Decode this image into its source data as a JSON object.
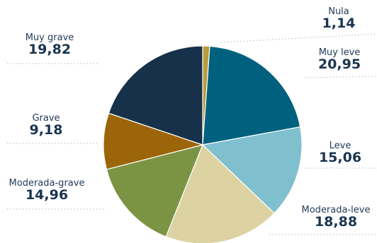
{
  "chart_data": {
    "type": "pie",
    "slices": [
      {
        "label": "Nula",
        "value": 1.14,
        "value_text": "1,14",
        "color": "#B99A3C"
      },
      {
        "label": "Muy leve",
        "value": 20.95,
        "value_text": "20,95",
        "color": "#00617F"
      },
      {
        "label": "Leve",
        "value": 15.06,
        "value_text": "15,06",
        "color": "#80BFCE"
      },
      {
        "label": "Moderada-leve",
        "value": 18.88,
        "value_text": "18,88",
        "color": "#DDD2A2"
      },
      {
        "label": "Moderada-grave",
        "value": 14.96,
        "value_text": "14,96",
        "color": "#7A9444"
      },
      {
        "label": "Grave",
        "value": 9.18,
        "value_text": "9,18",
        "color": "#9C650A"
      },
      {
        "label": "Muy grave",
        "value": 19.82,
        "value_text": "19,82",
        "color": "#163149"
      }
    ],
    "legend": "none",
    "label_placement": "outside, left and right of the pie"
  }
}
